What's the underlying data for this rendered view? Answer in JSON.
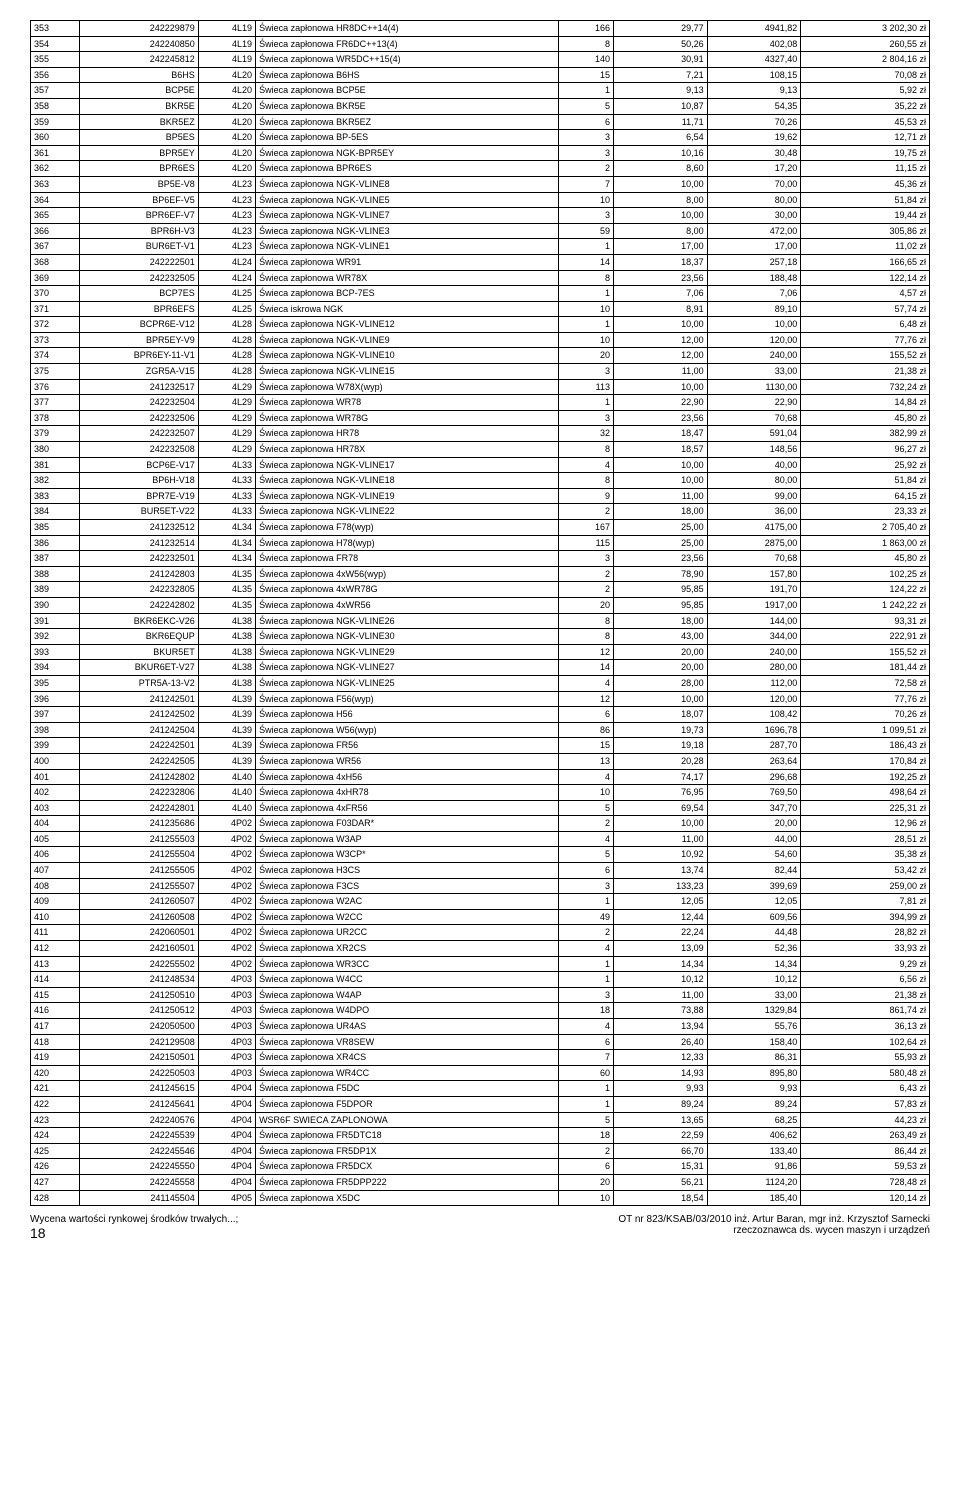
{
  "rows": [
    [
      "353",
      "242229879",
      "4L19",
      "Świeca zapłonowa HR8DC++14(4)",
      "166",
      "29,77",
      "4941,82",
      "3 202,30 zł"
    ],
    [
      "354",
      "242240850",
      "4L19",
      "Świeca zapłonowa FR6DC++13(4)",
      "8",
      "50,26",
      "402,08",
      "260,55 zł"
    ],
    [
      "355",
      "242245812",
      "4L19",
      "Świeca zapłonowa WR5DC++15(4)",
      "140",
      "30,91",
      "4327,40",
      "2 804,16 zł"
    ],
    [
      "356",
      "B6HS",
      "4L20",
      "Świeca zapłonowa B6HS",
      "15",
      "7,21",
      "108,15",
      "70,08 zł"
    ],
    [
      "357",
      "BCP5E",
      "4L20",
      "Świeca zapłonowa BCP5E",
      "1",
      "9,13",
      "9,13",
      "5,92 zł"
    ],
    [
      "358",
      "BKR5E",
      "4L20",
      "Świeca zapłonowa BKR5E",
      "5",
      "10,87",
      "54,35",
      "35,22 zł"
    ],
    [
      "359",
      "BKR5EZ",
      "4L20",
      "Świeca zapłonowa BKR5EZ",
      "6",
      "11,71",
      "70,26",
      "45,53 zł"
    ],
    [
      "360",
      "BP5ES",
      "4L20",
      "Świeca zapłonowa BP-5ES",
      "3",
      "6,54",
      "19,62",
      "12,71 zł"
    ],
    [
      "361",
      "BPR5EY",
      "4L20",
      "Świeca zapłonowa NGK-BPR5EY",
      "3",
      "10,16",
      "30,48",
      "19,75 zł"
    ],
    [
      "362",
      "BPR6ES",
      "4L20",
      "Świeca zapłonowa BPR6ES",
      "2",
      "8,60",
      "17,20",
      "11,15 zł"
    ],
    [
      "363",
      "BP5E-V8",
      "4L23",
      "Świeca zapłonowa NGK-VLINE8",
      "7",
      "10,00",
      "70,00",
      "45,36 zł"
    ],
    [
      "364",
      "BP6EF-V5",
      "4L23",
      "Świeca zapłonowa NGK-VLINE5",
      "10",
      "8,00",
      "80,00",
      "51,84 zł"
    ],
    [
      "365",
      "BPR6EF-V7",
      "4L23",
      "Świeca zapłonowa NGK-VLINE7",
      "3",
      "10,00",
      "30,00",
      "19,44 zł"
    ],
    [
      "366",
      "BPR6H-V3",
      "4L23",
      "Świeca zapłonowa NGK-VLINE3",
      "59",
      "8,00",
      "472,00",
      "305,86 zł"
    ],
    [
      "367",
      "BUR6ET-V1",
      "4L23",
      "Świeca zapłonowa NGK-VLINE1",
      "1",
      "17,00",
      "17,00",
      "11,02 zł"
    ],
    [
      "368",
      "242222501",
      "4L24",
      "Świeca zapłonowa WR91",
      "14",
      "18,37",
      "257,18",
      "166,65 zł"
    ],
    [
      "369",
      "242232505",
      "4L24",
      "Świeca zapłonowa WR78X",
      "8",
      "23,56",
      "188,48",
      "122,14 zł"
    ],
    [
      "370",
      "BCP7ES",
      "4L25",
      "Świeca zapłonowa BCP-7ES",
      "1",
      "7,06",
      "7,06",
      "4,57 zł"
    ],
    [
      "371",
      "BPR6EFS",
      "4L25",
      "Świeca iskrowa NGK",
      "10",
      "8,91",
      "89,10",
      "57,74 zł"
    ],
    [
      "372",
      "BCPR6E-V12",
      "4L28",
      "Świeca zapłonowa NGK-VLINE12",
      "1",
      "10,00",
      "10,00",
      "6,48 zł"
    ],
    [
      "373",
      "BPR5EY-V9",
      "4L28",
      "Świeca zapłonowa NGK-VLINE9",
      "10",
      "12,00",
      "120,00",
      "77,76 zł"
    ],
    [
      "374",
      "BPR6EY-11-V1",
      "4L28",
      "Świeca zapłonowa NGK-VLINE10",
      "20",
      "12,00",
      "240,00",
      "155,52 zł"
    ],
    [
      "375",
      "ZGR5A-V15",
      "4L28",
      "Świeca zapłonowa NGK-VLINE15",
      "3",
      "11,00",
      "33,00",
      "21,38 zł"
    ],
    [
      "376",
      "241232517",
      "4L29",
      "Świeca zapłonowa W78X(wyp)",
      "113",
      "10,00",
      "1130,00",
      "732,24 zł"
    ],
    [
      "377",
      "242232504",
      "4L29",
      "Świeca zapłonowa WR78",
      "1",
      "22,90",
      "22,90",
      "14,84 zł"
    ],
    [
      "378",
      "242232506",
      "4L29",
      "Świeca zapłonowa WR78G",
      "3",
      "23,56",
      "70,68",
      "45,80 zł"
    ],
    [
      "379",
      "242232507",
      "4L29",
      "Świeca zapłonowa HR78",
      "32",
      "18,47",
      "591,04",
      "382,99 zł"
    ],
    [
      "380",
      "242232508",
      "4L29",
      "Świeca zapłonowa HR78X",
      "8",
      "18,57",
      "148,56",
      "96,27 zł"
    ],
    [
      "381",
      "BCP6E-V17",
      "4L33",
      "Świeca zapłonowa NGK-VLINE17",
      "4",
      "10,00",
      "40,00",
      "25,92 zł"
    ],
    [
      "382",
      "BP6H-V18",
      "4L33",
      "Świeca zapłonowa NGK-VLINE18",
      "8",
      "10,00",
      "80,00",
      "51,84 zł"
    ],
    [
      "383",
      "BPR7E-V19",
      "4L33",
      "Świeca zapłonowa NGK-VLINE19",
      "9",
      "11,00",
      "99,00",
      "64,15 zł"
    ],
    [
      "384",
      "BUR5ET-V22",
      "4L33",
      "Świeca zapłonowa NGK-VLINE22",
      "2",
      "18,00",
      "36,00",
      "23,33 zł"
    ],
    [
      "385",
      "241232512",
      "4L34",
      "Świeca zapłonowa F78(wyp)",
      "167",
      "25,00",
      "4175,00",
      "2 705,40 zł"
    ],
    [
      "386",
      "241232514",
      "4L34",
      "Świeca zapłonowa H78(wyp)",
      "115",
      "25,00",
      "2875,00",
      "1 863,00 zł"
    ],
    [
      "387",
      "242232501",
      "4L34",
      "Świeca zapłonowa FR78",
      "3",
      "23,56",
      "70,68",
      "45,80 zł"
    ],
    [
      "388",
      "241242803",
      "4L35",
      "Świeca zapłonowa 4xW56(wyp)",
      "2",
      "78,90",
      "157,80",
      "102,25 zł"
    ],
    [
      "389",
      "242232805",
      "4L35",
      "Świeca zapłonowa 4xWR78G",
      "2",
      "95,85",
      "191,70",
      "124,22 zł"
    ],
    [
      "390",
      "242242802",
      "4L35",
      "Świeca zapłonowa 4xWR56",
      "20",
      "95,85",
      "1917,00",
      "1 242,22 zł"
    ],
    [
      "391",
      "BKR6EKC-V26",
      "4L38",
      "Świeca zapłonowa NGK-VLINE26",
      "8",
      "18,00",
      "144,00",
      "93,31 zł"
    ],
    [
      "392",
      "BKR6EQUP",
      "4L38",
      "Świeca zapłonowa NGK-VLINE30",
      "8",
      "43,00",
      "344,00",
      "222,91 zł"
    ],
    [
      "393",
      "BKUR5ET",
      "4L38",
      "Świeca zapłonowa NGK-VLINE29",
      "12",
      "20,00",
      "240,00",
      "155,52 zł"
    ],
    [
      "394",
      "BKUR6ET-V27",
      "4L38",
      "Świeca zapłonowa NGK-VLINE27",
      "14",
      "20,00",
      "280,00",
      "181,44 zł"
    ],
    [
      "395",
      "PTR5A-13-V2",
      "4L38",
      "Świeca zapłonowa NGK-VLINE25",
      "4",
      "28,00",
      "112,00",
      "72,58 zł"
    ],
    [
      "396",
      "241242501",
      "4L39",
      "Świeca zapłonowa F56(wyp)",
      "12",
      "10,00",
      "120,00",
      "77,76 zł"
    ],
    [
      "397",
      "241242502",
      "4L39",
      "Świeca zapłonowa H56",
      "6",
      "18,07",
      "108,42",
      "70,26 zł"
    ],
    [
      "398",
      "241242504",
      "4L39",
      "Świeca zapłonowa W56(wyp)",
      "86",
      "19,73",
      "1696,78",
      "1 099,51 zł"
    ],
    [
      "399",
      "242242501",
      "4L39",
      "Świeca zapłonowa FR56",
      "15",
      "19,18",
      "287,70",
      "186,43 zł"
    ],
    [
      "400",
      "242242505",
      "4L39",
      "Świeca zapłonowa WR56",
      "13",
      "20,28",
      "263,64",
      "170,84 zł"
    ],
    [
      "401",
      "241242802",
      "4L40",
      "Świeca zapłonowa 4xH56",
      "4",
      "74,17",
      "296,68",
      "192,25 zł"
    ],
    [
      "402",
      "242232806",
      "4L40",
      "Świeca zapłonowa 4xHR78",
      "10",
      "76,95",
      "769,50",
      "498,64 zł"
    ],
    [
      "403",
      "242242801",
      "4L40",
      "Świeca zapłonowa 4xFR56",
      "5",
      "69,54",
      "347,70",
      "225,31 zł"
    ],
    [
      "404",
      "241235686",
      "4P02",
      "Świeca zapłonowa F03DAR*",
      "2",
      "10,00",
      "20,00",
      "12,96 zł"
    ],
    [
      "405",
      "241255503",
      "4P02",
      "Świeca zapłonowa W3AP",
      "4",
      "11,00",
      "44,00",
      "28,51 zł"
    ],
    [
      "406",
      "241255504",
      "4P02",
      "Świeca zapłonowa W3CP*",
      "5",
      "10,92",
      "54,60",
      "35,38 zł"
    ],
    [
      "407",
      "241255505",
      "4P02",
      "Świeca zapłonowa H3CS",
      "6",
      "13,74",
      "82,44",
      "53,42 zł"
    ],
    [
      "408",
      "241255507",
      "4P02",
      "Świeca zapłonowa F3CS",
      "3",
      "133,23",
      "399,69",
      "259,00 zł"
    ],
    [
      "409",
      "241260507",
      "4P02",
      "Świeca zapłonowa W2AC",
      "1",
      "12,05",
      "12,05",
      "7,81 zł"
    ],
    [
      "410",
      "241260508",
      "4P02",
      "Świeca zapłonowa W2CC",
      "49",
      "12,44",
      "609,56",
      "394,99 zł"
    ],
    [
      "411",
      "242060501",
      "4P02",
      "Świeca zapłonowa UR2CC",
      "2",
      "22,24",
      "44,48",
      "28,82 zł"
    ],
    [
      "412",
      "242160501",
      "4P02",
      "Świeca zapłonowa XR2CS",
      "4",
      "13,09",
      "52,36",
      "33,93 zł"
    ],
    [
      "413",
      "242255502",
      "4P02",
      "Świeca zapłonowa WR3CC",
      "1",
      "14,34",
      "14,34",
      "9,29 zł"
    ],
    [
      "414",
      "241248534",
      "4P03",
      "Świeca zapłonowa W4CC",
      "1",
      "10,12",
      "10,12",
      "6,56 zł"
    ],
    [
      "415",
      "241250510",
      "4P03",
      "Świeca zapłonowa W4AP",
      "3",
      "11,00",
      "33,00",
      "21,38 zł"
    ],
    [
      "416",
      "241250512",
      "4P03",
      "Świeca zapłonowa W4DPO",
      "18",
      "73,88",
      "1329,84",
      "861,74 zł"
    ],
    [
      "417",
      "242050500",
      "4P03",
      "Świeca zapłonowa UR4AS",
      "4",
      "13,94",
      "55,76",
      "36,13 zł"
    ],
    [
      "418",
      "242129508",
      "4P03",
      "Świeca zapłonowa VR8SEW",
      "6",
      "26,40",
      "158,40",
      "102,64 zł"
    ],
    [
      "419",
      "242150501",
      "4P03",
      "Świeca zapłonowa XR4CS",
      "7",
      "12,33",
      "86,31",
      "55,93 zł"
    ],
    [
      "420",
      "242250503",
      "4P03",
      "Świeca zapłonowa WR4CC",
      "60",
      "14,93",
      "895,80",
      "580,48 zł"
    ],
    [
      "421",
      "241245615",
      "4P04",
      "Świeca zapłonowa F5DC",
      "1",
      "9,93",
      "9,93",
      "6,43 zł"
    ],
    [
      "422",
      "241245641",
      "4P04",
      "Świeca zapłonowa F5DPOR",
      "1",
      "89,24",
      "89,24",
      "57,83 zł"
    ],
    [
      "423",
      "242240576",
      "4P04",
      "WSR6F SWIECA ZAPLONOWA",
      "5",
      "13,65",
      "68,25",
      "44,23 zł"
    ],
    [
      "424",
      "242245539",
      "4P04",
      "Świeca zapłonowa FR5DTC18",
      "18",
      "22,59",
      "406,62",
      "263,49 zł"
    ],
    [
      "425",
      "242245546",
      "4P04",
      "Świeca zapłonowa FR5DP1X",
      "2",
      "66,70",
      "133,40",
      "86,44 zł"
    ],
    [
      "426",
      "242245550",
      "4P04",
      "Świeca zapłonowa FR5DCX",
      "6",
      "15,31",
      "91,86",
      "59,53 zł"
    ],
    [
      "427",
      "242245558",
      "4P04",
      "Świeca zapłonowa FR5DPP222",
      "20",
      "56,21",
      "1124,20",
      "728,48 zł"
    ],
    [
      "428",
      "241145504",
      "4P05",
      "Świeca zapłonowa X5DC",
      "10",
      "18,54",
      "185,40",
      "120,14 zł"
    ]
  ],
  "footer": {
    "left_line1": "Wycena wartości rynkowej środków trwałych...;",
    "left_line2": "18",
    "right_line1": "OT nr 823/KSAB/03/2010 inż. Artur Baran, mgr inż. Krzysztof Sarnecki",
    "right_line2": "rzeczoznawca ds. wycen maszyn i urządzeń"
  }
}
